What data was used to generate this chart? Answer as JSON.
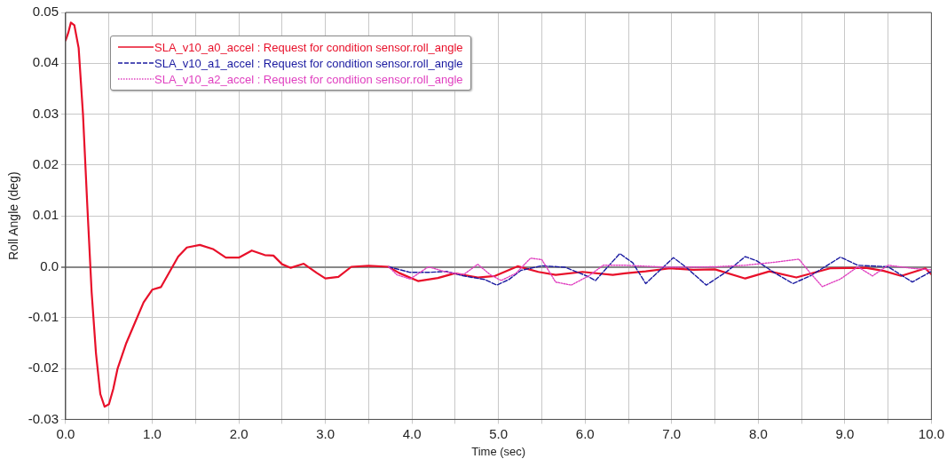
{
  "chart_data": {
    "type": "line",
    "xlabel": "Time (sec)",
    "ylabel": "Roll Angle (deg)",
    "xlim": [
      0,
      10
    ],
    "ylim": [
      -0.03,
      0.05
    ],
    "xticks": [
      {
        "value": 0,
        "label": "0.0"
      },
      {
        "value": 0.5,
        "label": null
      },
      {
        "value": 1,
        "label": "1.0"
      },
      {
        "value": 1.5,
        "label": null
      },
      {
        "value": 2,
        "label": "2.0"
      },
      {
        "value": 2.5,
        "label": null
      },
      {
        "value": 3,
        "label": "3.0"
      },
      {
        "value": 3.5,
        "label": null
      },
      {
        "value": 4,
        "label": "4.0"
      },
      {
        "value": 4.5,
        "label": null
      },
      {
        "value": 5,
        "label": "5.0"
      },
      {
        "value": 5.5,
        "label": null
      },
      {
        "value": 6,
        "label": "6.0"
      },
      {
        "value": 6.5,
        "label": null
      },
      {
        "value": 7,
        "label": "7.0"
      },
      {
        "value": 7.5,
        "label": null
      },
      {
        "value": 8,
        "label": "8.0"
      },
      {
        "value": 8.5,
        "label": null
      },
      {
        "value": 9,
        "label": "9.0"
      },
      {
        "value": 9.5,
        "label": null
      },
      {
        "value": 10,
        "label": "10.0"
      }
    ],
    "yticks": [
      0.05,
      0.04,
      0.03,
      0.02,
      0.01,
      {
        "value": 0,
        "label": "0.0"
      },
      -0.01,
      -0.02,
      -0.03
    ],
    "grid": true,
    "legend": "top left",
    "marker": "none",
    "series": [
      {
        "name": "SLA_v10_a0_accel : Request for condition sensor.roll_angle",
        "color": "#e8102a",
        "line_style": "solid",
        "x": [
          0,
          0.03,
          0.06,
          0.1,
          0.15,
          0.2,
          0.25,
          0.3,
          0.35,
          0.4,
          0.45,
          0.5,
          0.55,
          0.6,
          0.7,
          0.8,
          0.9,
          1.0,
          1.1,
          1.2,
          1.3,
          1.4,
          1.55,
          1.7,
          1.85,
          2.0,
          2.15,
          2.3,
          2.4,
          2.5,
          2.6,
          2.75,
          2.9,
          3.0,
          3.15,
          3.3,
          3.5,
          3.73,
          3.85,
          4.07,
          4.3,
          4.49,
          4.76,
          4.96,
          5.22,
          5.46,
          5.66,
          5.97,
          6.32,
          6.46,
          6.7,
          6.98,
          7.25,
          7.5,
          7.85,
          8.13,
          8.44,
          8.83,
          9.24,
          9.45,
          9.65,
          9.93,
          10
        ],
        "values": [
          0.0445,
          0.046,
          0.048,
          0.0475,
          0.043,
          0.03,
          0.012,
          -0.005,
          -0.017,
          -0.025,
          -0.0275,
          -0.027,
          -0.024,
          -0.02,
          -0.015,
          -0.011,
          -0.007,
          -0.0045,
          -0.004,
          -0.001,
          0.002,
          0.0038,
          0.0043,
          0.0035,
          0.0018,
          0.0018,
          0.0032,
          0.0023,
          0.0022,
          0.0005,
          -0.0002,
          0.0006,
          -0.0012,
          -0.0023,
          -0.002,
          0,
          0.0002,
          0,
          -0.0012,
          -0.0028,
          -0.0022,
          -0.0013,
          -0.0021,
          -0.0018,
          0.0001,
          -0.001,
          -0.0016,
          -0.001,
          -0.0016,
          -0.0013,
          -0.0009,
          -0.0003,
          -0.0006,
          -0.0005,
          -0.0023,
          -0.0009,
          -0.0021,
          -0.0003,
          -0.0002,
          -0.0008,
          -0.0018,
          -0.0003,
          -0.0015
        ]
      },
      {
        "name": "SLA_v10_a1_accel : Request for condition sensor.roll_angle",
        "color": "#1a1aa0",
        "line_style": "dashed",
        "x": [
          3.73,
          3.98,
          4.19,
          4.4,
          4.6,
          4.84,
          4.98,
          5.12,
          5.26,
          5.5,
          5.77,
          6.02,
          6.12,
          6.4,
          6.55,
          6.7,
          7.02,
          7.16,
          7.4,
          7.64,
          7.85,
          7.98,
          8.19,
          8.4,
          8.6,
          8.95,
          9.15,
          9.5,
          9.78,
          10
        ],
        "values": [
          0,
          -0.0011,
          -0.0011,
          -0.0009,
          -0.0018,
          -0.0025,
          -0.0036,
          -0.0025,
          -0.0007,
          0.0002,
          -0.0001,
          -0.0018,
          -0.0027,
          0.0026,
          0.0008,
          -0.0033,
          0.0018,
          0,
          -0.0036,
          -0.0009,
          0.002,
          0.0012,
          -0.0012,
          -0.0033,
          -0.0018,
          0.0019,
          0.0003,
          0,
          -0.003,
          -0.0009
        ]
      },
      {
        "name": "SLA_v10_a2_accel : Request for condition sensor.roll_angle",
        "color": "#e040c0",
        "line_style": "dotted",
        "x": [
          3.73,
          3.83,
          3.98,
          4.19,
          4.41,
          4.6,
          4.76,
          4.9,
          5.03,
          5.2,
          5.37,
          5.5,
          5.66,
          5.84,
          6.04,
          6.21,
          6.46,
          6.98,
          7.5,
          7.85,
          8.19,
          8.47,
          8.6,
          8.74,
          8.95,
          9.15,
          9.32,
          9.5,
          9.78,
          10
        ],
        "values": [
          0,
          -0.0016,
          -0.0024,
          0,
          -0.0011,
          -0.0015,
          0.0005,
          -0.0015,
          -0.0027,
          -0.0013,
          0.0017,
          0.0014,
          -0.003,
          -0.0036,
          -0.0018,
          0.0003,
          0.0003,
          -0.0001,
          0,
          0.0003,
          0.0009,
          0.0015,
          -0.0012,
          -0.0039,
          -0.0024,
          0,
          -0.0018,
          0.0003,
          -0.0003,
          -0.0006
        ]
      }
    ]
  }
}
